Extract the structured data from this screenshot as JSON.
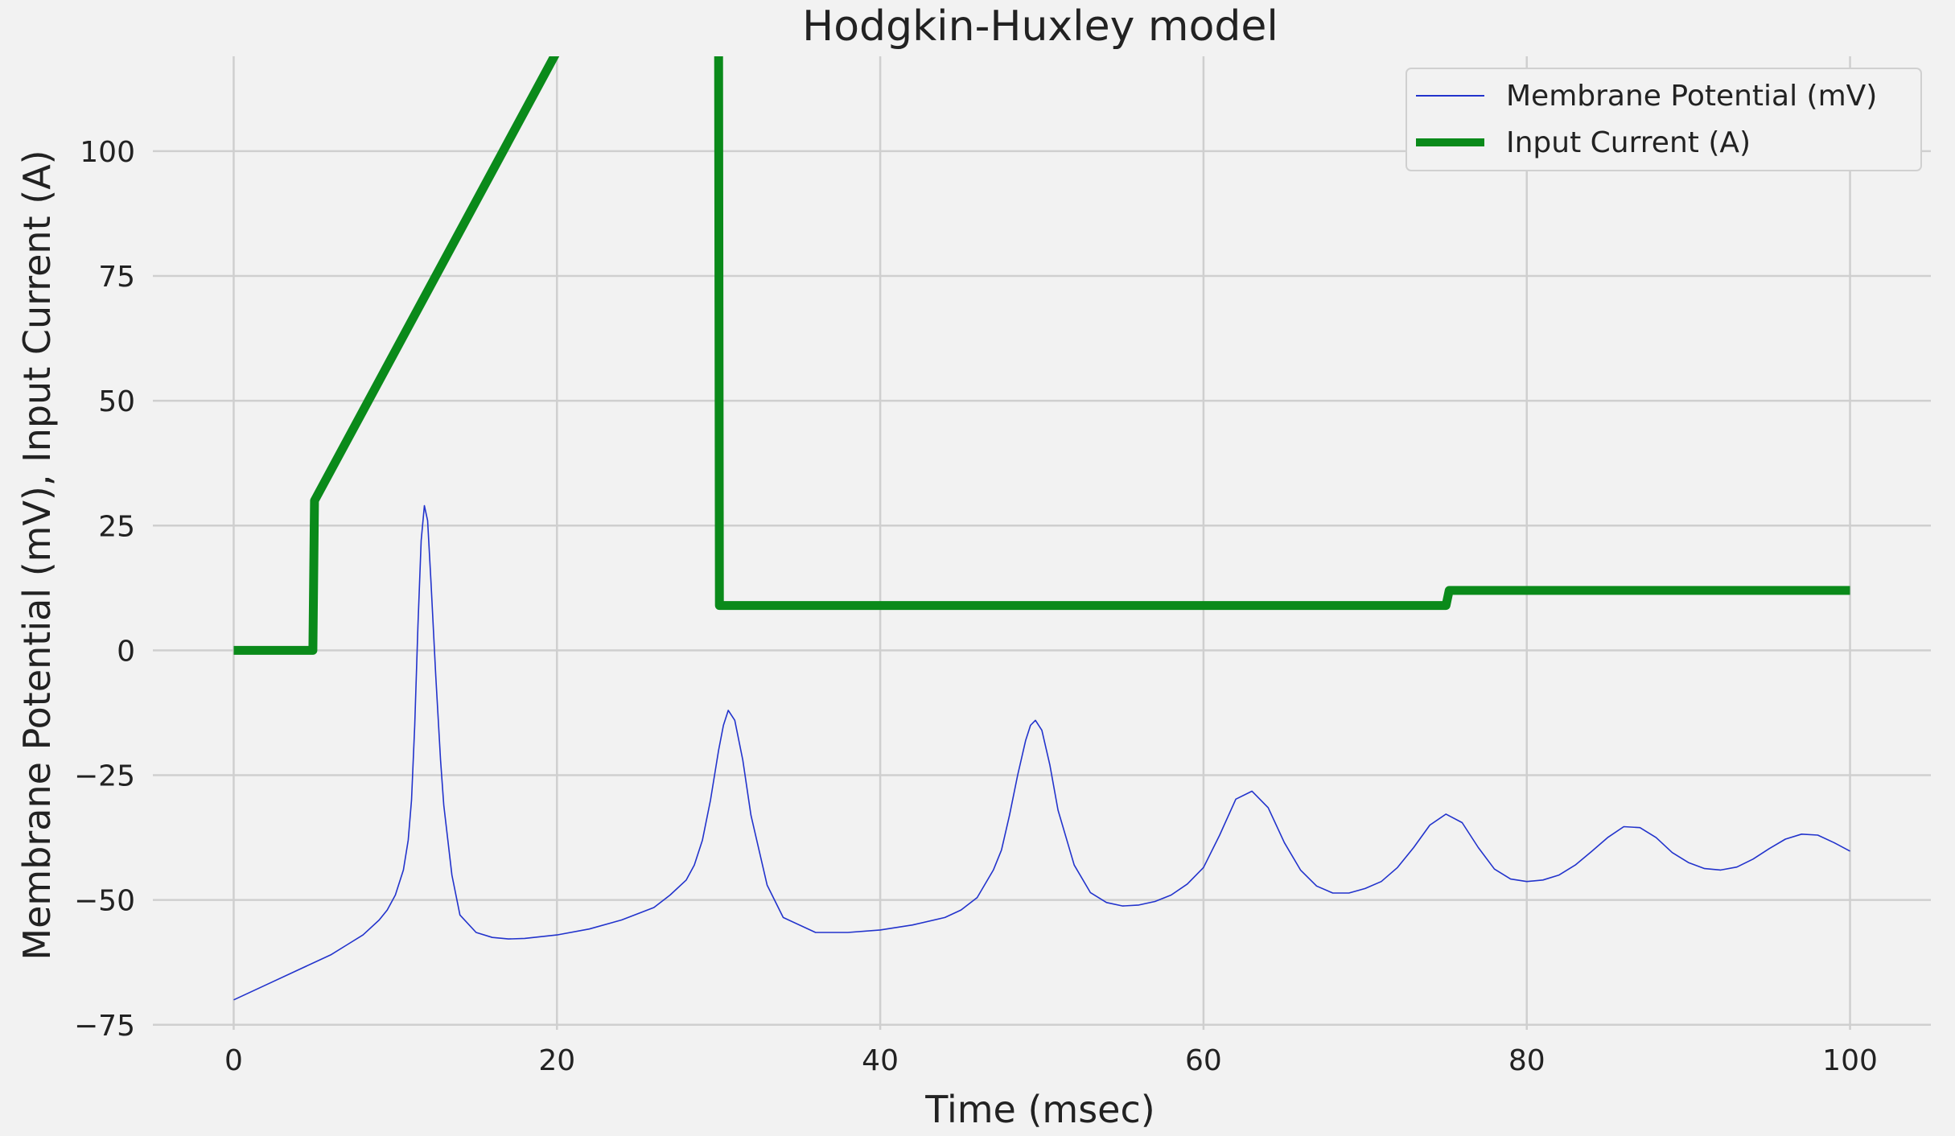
{
  "chart_data": {
    "type": "line",
    "title": "Hodgkin-Huxley model",
    "xlabel": "Time (msec)",
    "ylabel": "Membrane Potential (mV), Input Current (A)",
    "xlim": [
      -5,
      105
    ],
    "ylim": [
      -76,
      119
    ],
    "xticks": [
      0,
      20,
      40,
      60,
      80,
      100
    ],
    "yticks": [
      -75,
      -50,
      -25,
      0,
      25,
      50,
      75,
      100
    ],
    "xtick_labels": [
      "0",
      "20",
      "40",
      "60",
      "80",
      "100"
    ],
    "ytick_labels": [
      "−75",
      "−50",
      "−25",
      "0",
      "25",
      "50",
      "75",
      "100"
    ],
    "grid": true,
    "legend_position": "top-right",
    "series": [
      {
        "name": "Membrane Potential (mV)",
        "color": "#2233cc",
        "x": [
          0,
          2,
          4,
          6,
          7,
          8,
          9,
          9.5,
          10,
          10.5,
          10.8,
          11,
          11.2,
          11.4,
          11.6,
          11.8,
          12,
          12.2,
          12.5,
          12.8,
          13,
          13.5,
          14,
          15,
          16,
          17,
          18,
          20,
          22,
          24,
          26,
          27,
          28,
          28.5,
          29,
          29.5,
          30,
          30.3,
          30.6,
          31,
          31.5,
          32,
          33,
          34,
          36,
          38,
          40,
          42,
          44,
          45,
          46,
          47,
          47.5,
          48,
          48.5,
          49,
          49.3,
          49.6,
          50,
          50.5,
          51,
          52,
          53,
          54,
          55,
          56,
          57,
          58,
          59,
          60,
          61,
          62,
          63,
          64,
          65,
          66,
          67,
          68,
          69,
          70,
          71,
          72,
          73,
          74,
          75,
          76,
          77,
          78,
          79,
          80,
          81,
          82,
          83,
          84,
          85,
          86,
          87,
          88,
          89,
          90,
          91,
          92,
          93,
          94,
          95,
          96,
          97,
          98,
          99,
          100
        ],
        "y": [
          -70,
          -67,
          -64,
          -61,
          -59,
          -57,
          -54,
          -52,
          -49,
          -44,
          -38,
          -30,
          -15,
          5,
          22,
          29,
          26,
          14,
          -5,
          -22,
          -31,
          -45,
          -53,
          -56.5,
          -57.5,
          -57.8,
          -57.7,
          -57,
          -55.8,
          -54,
          -51.5,
          -49,
          -46,
          -43,
          -38,
          -30,
          -20,
          -15,
          -12,
          -14,
          -22,
          -33,
          -47,
          -53.5,
          -56.5,
          -56.5,
          -56,
          -55,
          -53.5,
          -52,
          -49.5,
          -44,
          -40,
          -33,
          -25,
          -18,
          -15,
          -14,
          -16,
          -23,
          -32,
          -43,
          -48.5,
          -50.5,
          -51.2,
          -51,
          -50.3,
          -49,
          -46.8,
          -43.5,
          -37,
          -29.8,
          -28.2,
          -31.5,
          -38.5,
          -44,
          -47.2,
          -48.6,
          -48.6,
          -47.7,
          -46.3,
          -43.5,
          -39.5,
          -35,
          -32.8,
          -34.5,
          -39.5,
          -43.8,
          -45.8,
          -46.3,
          -46,
          -45,
          -43,
          -40.3,
          -37.5,
          -35.3,
          -35.5,
          -37.5,
          -40.5,
          -42.5,
          -43.7,
          -44,
          -43.4,
          -41.8,
          -39.7,
          -37.8,
          -36.8,
          -37,
          -38.5,
          -40.2
        ]
      },
      {
        "name": "Input Current (A)",
        "color": "#0a8a1a",
        "x": [
          0,
          4.9,
          5,
          20,
          30,
          30.05,
          75,
          75.2,
          100
        ],
        "y": [
          0,
          0,
          30,
          120,
          120,
          9,
          9,
          12,
          12
        ]
      }
    ]
  }
}
